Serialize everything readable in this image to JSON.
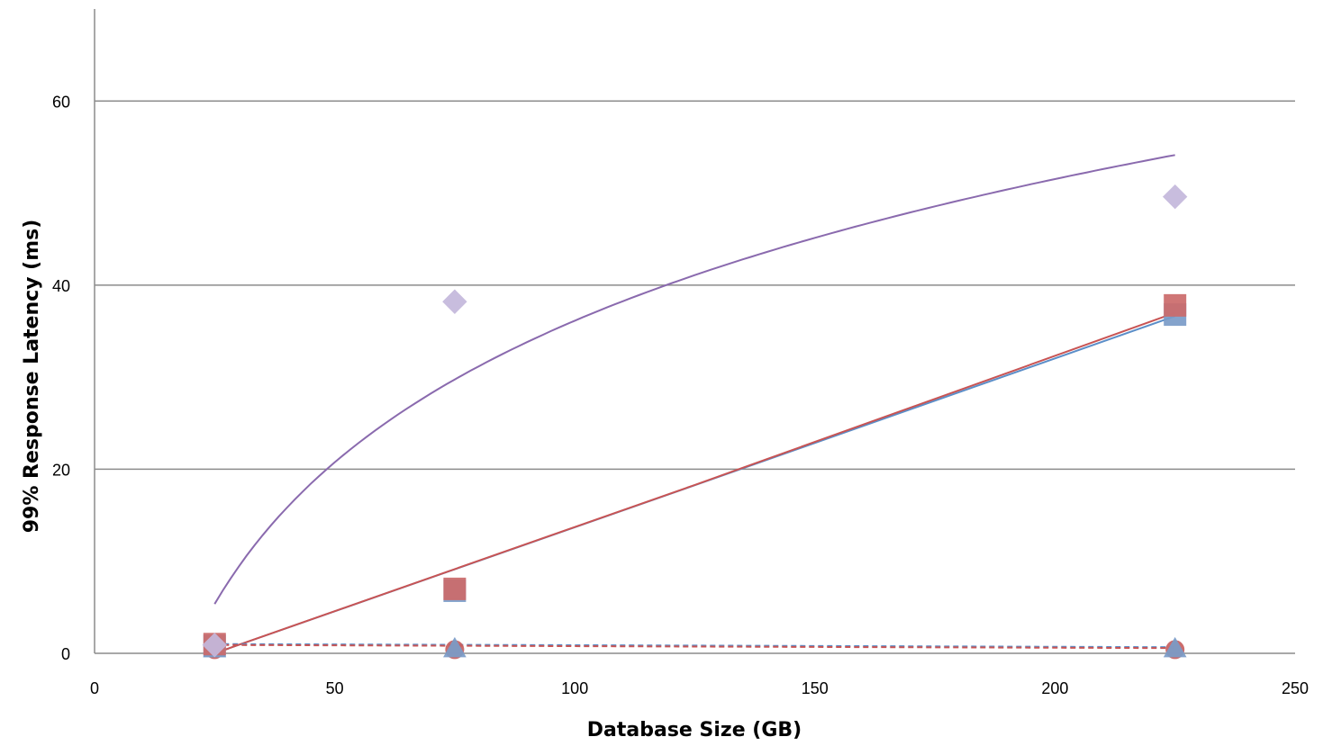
{
  "chart_data": {
    "type": "scatter",
    "title": "",
    "xlabel": "Database Size (GB)",
    "ylabel": "99% Response Latency (ms)",
    "xlim": [
      0,
      250
    ],
    "ylim": [
      0,
      70
    ],
    "x_ticks": [
      "0",
      "50",
      "100",
      "150",
      "200",
      "250"
    ],
    "y_ticks": [
      "0",
      "20",
      "40",
      "60"
    ],
    "grid": "horizontal",
    "legend": "none",
    "series": [
      {
        "marker": "square",
        "color": "#7a9cc8",
        "x": [
          25,
          75,
          225
        ],
        "y": [
          0.8,
          6.8,
          36.8
        ]
      },
      {
        "marker": "square",
        "color": "#cc6b6b",
        "x": [
          25,
          75,
          225
        ],
        "y": [
          1.0,
          7.0,
          37.8
        ]
      },
      {
        "marker": "diamond",
        "color": "#c4b8dc",
        "x": [
          25,
          75,
          225
        ],
        "y": [
          0.9,
          38.2,
          49.6
        ]
      },
      {
        "marker": "triangle",
        "color": "#7a9cc8",
        "x": [
          25,
          75,
          225
        ],
        "y": [
          0.5,
          0.5,
          0.5
        ]
      },
      {
        "marker": "circle",
        "color": "#c86060",
        "x": [
          25,
          75,
          225
        ],
        "y": [
          0.4,
          0.4,
          0.4
        ]
      }
    ],
    "trendlines": [
      {
        "kind": "linear",
        "color": "#5b8ec8",
        "style": "solid",
        "x_range": [
          25,
          225
        ],
        "slope": 0.1837,
        "intercept": -4.7
      },
      {
        "kind": "linear",
        "color": "#c85454",
        "style": "solid",
        "x_range": [
          25,
          225
        ],
        "slope": 0.1871,
        "intercept": -5.1
      },
      {
        "kind": "logarithmic",
        "color": "#8a6aae",
        "style": "solid",
        "x_range": [
          25,
          225
        ],
        "a": 22.2,
        "b": -66.1
      },
      {
        "kind": "linear",
        "color": "#5b8ec8",
        "style": "dashed",
        "x_range": [
          25,
          225
        ],
        "slope": -0.0017,
        "intercept": 1.05
      },
      {
        "kind": "linear",
        "color": "#c85454",
        "style": "dashed",
        "x_range": [
          25,
          225
        ],
        "slope": -0.0017,
        "intercept": 0.95
      }
    ]
  }
}
